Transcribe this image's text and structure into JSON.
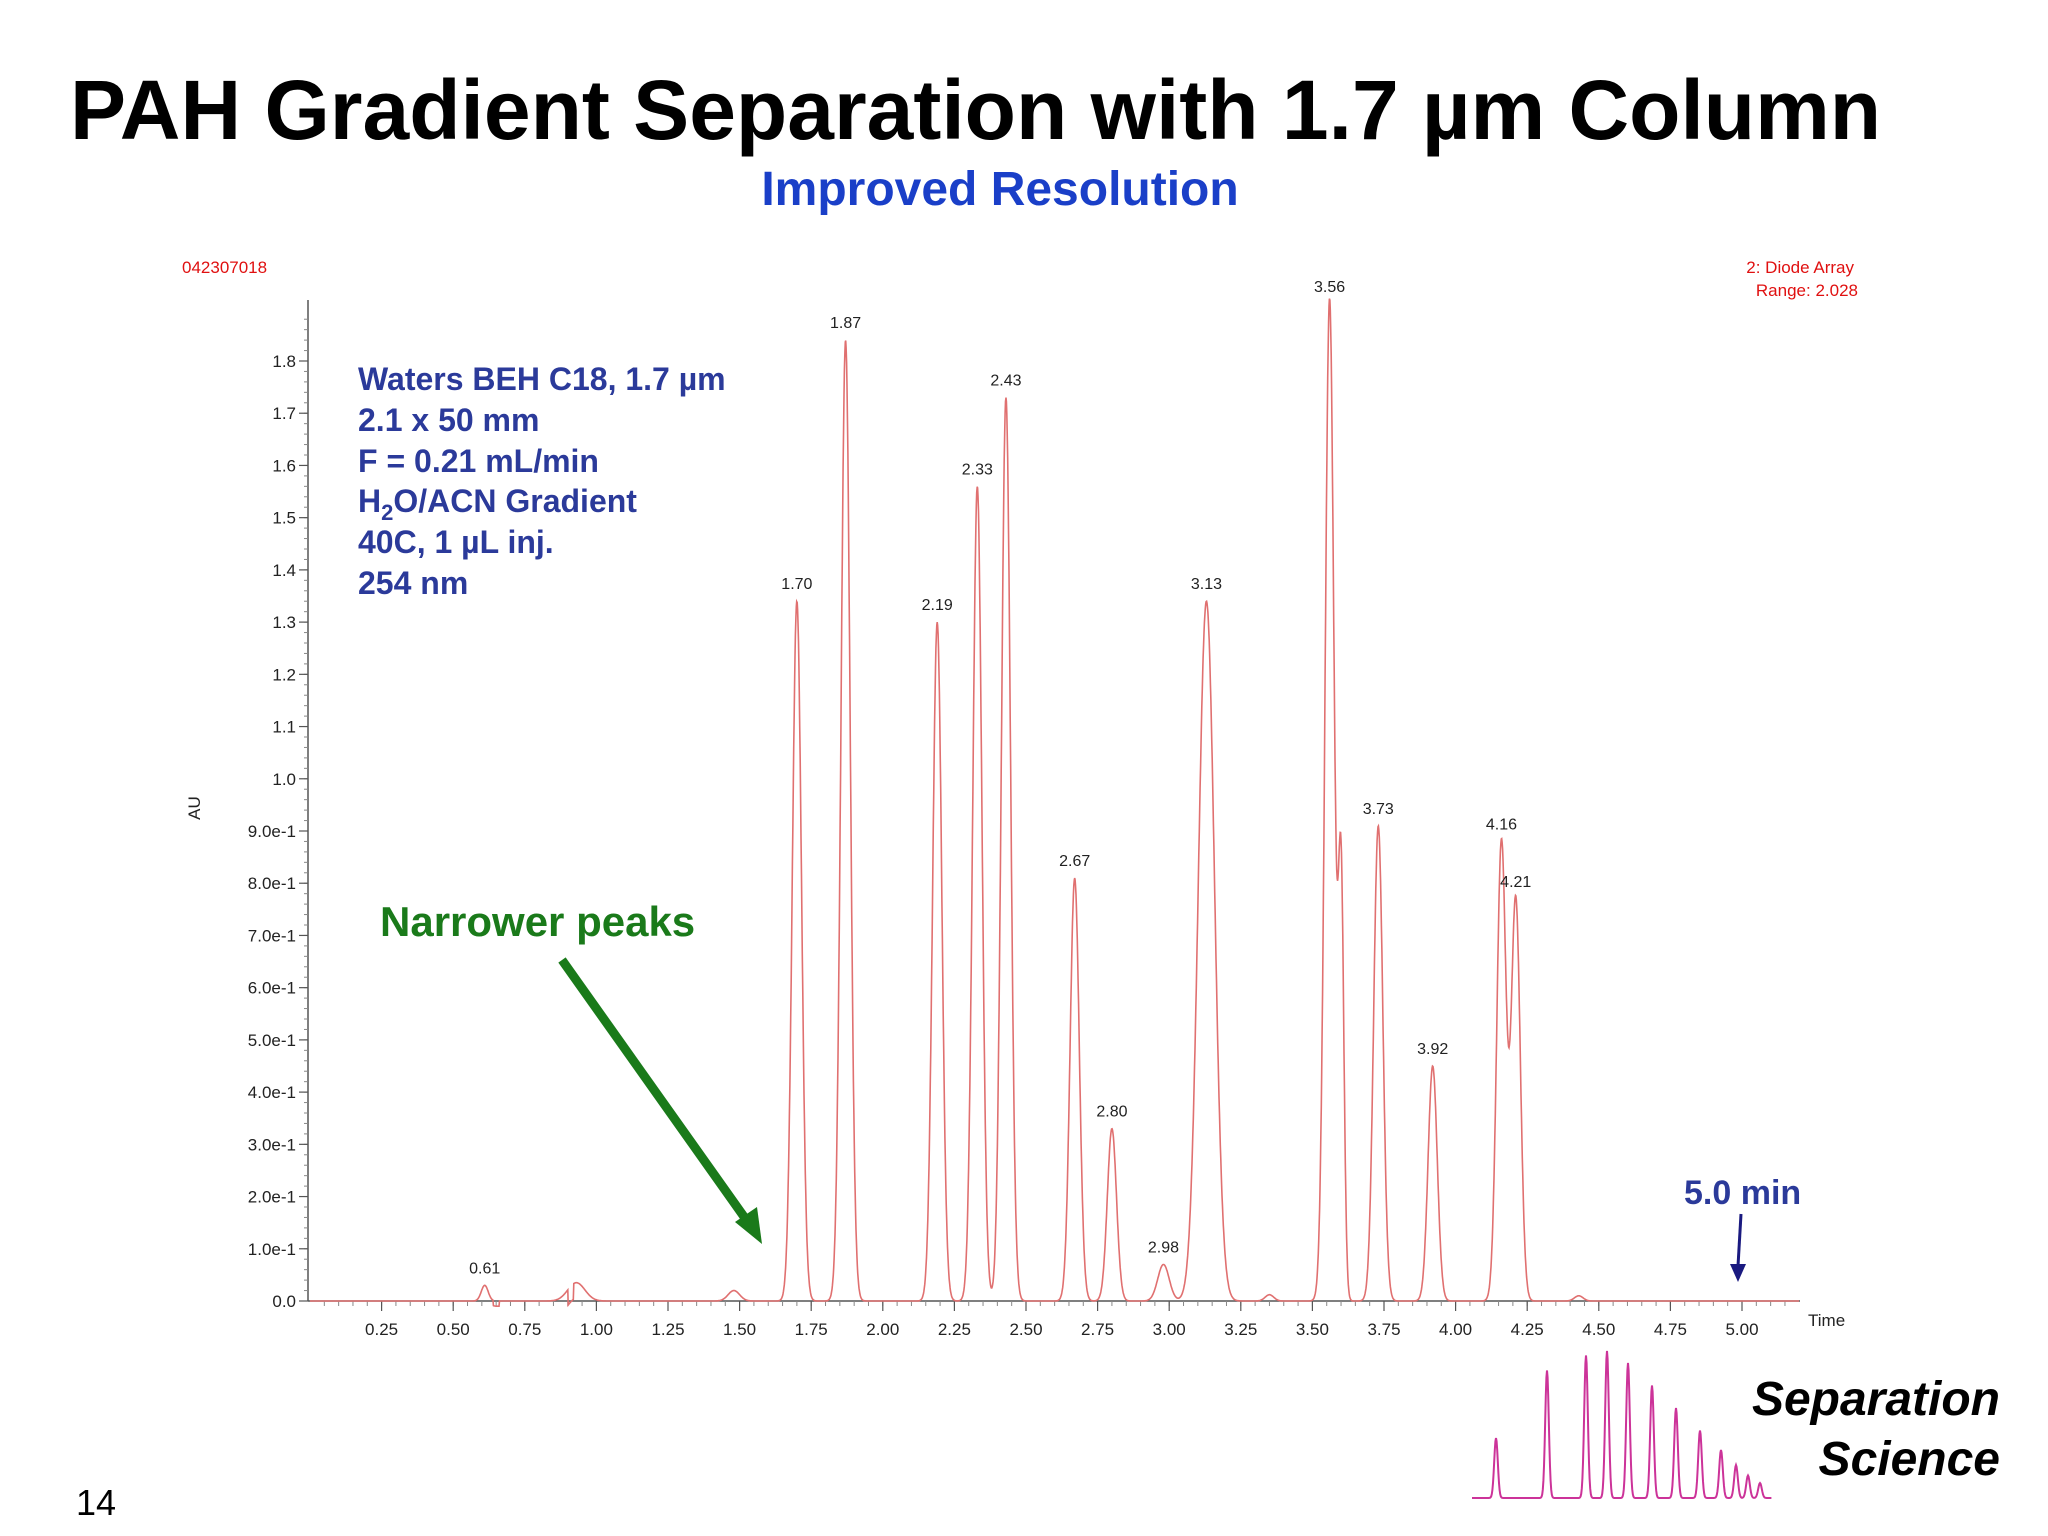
{
  "slide": {
    "title": "PAH Gradient Separation with 1.7 µm Column",
    "subtitle": "Improved Resolution",
    "page_number": "14",
    "brand_line1": "Separation",
    "brand_line2": "Science"
  },
  "colors": {
    "trace": "#e07070",
    "instrument_text": "#e01010",
    "conditions_text": "#2b3a9a",
    "annotation_green": "#1a7a1a",
    "annotation_blue": "#2b3a9a",
    "logo_trace": "#cc3399"
  },
  "chart_data": {
    "type": "line",
    "run_id": "042307018",
    "detector_line1": "2: Diode Array",
    "detector_line2": "Range: 2.028",
    "xlabel": "Time",
    "ylabel": "AU",
    "xlim": [
      0,
      5.2
    ],
    "ylim": [
      0,
      1.9
    ],
    "x_ticks": [
      0.25,
      0.5,
      0.75,
      1.0,
      1.25,
      1.5,
      1.75,
      2.0,
      2.25,
      2.5,
      2.75,
      3.0,
      3.25,
      3.5,
      3.75,
      4.0,
      4.25,
      4.5,
      4.75,
      5.0
    ],
    "x_tick_labels": [
      "0.25",
      "0.50",
      "0.75",
      "1.00",
      "1.25",
      "1.50",
      "1.75",
      "2.00",
      "2.25",
      "2.50",
      "2.75",
      "3.00",
      "3.25",
      "3.50",
      "3.75",
      "4.00",
      "4.25",
      "4.50",
      "4.75",
      "5.00"
    ],
    "y_ticks": [
      0,
      0.1,
      0.2,
      0.3,
      0.4,
      0.5,
      0.6,
      0.7,
      0.8,
      0.9,
      1.0,
      1.1,
      1.2,
      1.3,
      1.4,
      1.5,
      1.6,
      1.7,
      1.8
    ],
    "y_tick_labels": [
      "0.0",
      "1.0e-1",
      "2.0e-1",
      "3.0e-1",
      "4.0e-1",
      "5.0e-1",
      "6.0e-1",
      "7.0e-1",
      "8.0e-1",
      "9.0e-1",
      "1.0",
      "1.1",
      "1.2",
      "1.3",
      "1.4",
      "1.5",
      "1.6",
      "1.7",
      "1.8"
    ],
    "peaks": [
      {
        "label": "0.61",
        "time": 0.61,
        "height": 0.03
      },
      {
        "label": "1.70",
        "time": 1.7,
        "height": 1.34
      },
      {
        "label": "1.87",
        "time": 1.87,
        "height": 1.84
      },
      {
        "label": "2.19",
        "time": 2.19,
        "height": 1.3
      },
      {
        "label": "2.33",
        "time": 2.33,
        "height": 1.56
      },
      {
        "label": "2.43",
        "time": 2.43,
        "height": 1.73
      },
      {
        "label": "2.67",
        "time": 2.67,
        "height": 0.81
      },
      {
        "label": "2.80",
        "time": 2.8,
        "height": 0.33
      },
      {
        "label": "2.98",
        "time": 2.98,
        "height": 0.07
      },
      {
        "label": "3.13",
        "time": 3.13,
        "height": 1.34
      },
      {
        "label": "3.56",
        "time": 3.56,
        "height": 1.92
      },
      {
        "label": "3.73",
        "time": 3.73,
        "height": 0.91
      },
      {
        "label": "3.92",
        "time": 3.92,
        "height": 0.45
      },
      {
        "label": "4.16",
        "time": 4.16,
        "height": 0.88
      },
      {
        "label": "4.21",
        "time": 4.21,
        "height": 0.77
      }
    ],
    "conditions": {
      "line1": "Waters BEH C18, 1.7 µm",
      "line2": "2.1 x 50 mm",
      "line3": "F = 0.21 mL/min",
      "line4_pre": "H",
      "line4_sub": "2",
      "line4_post": "O/ACN Gradient",
      "line5": "40C, 1 µL inj.",
      "line6": "254 nm"
    },
    "annotations": {
      "narrower_peaks": "Narrower peaks",
      "run_time": "5.0 min"
    }
  }
}
